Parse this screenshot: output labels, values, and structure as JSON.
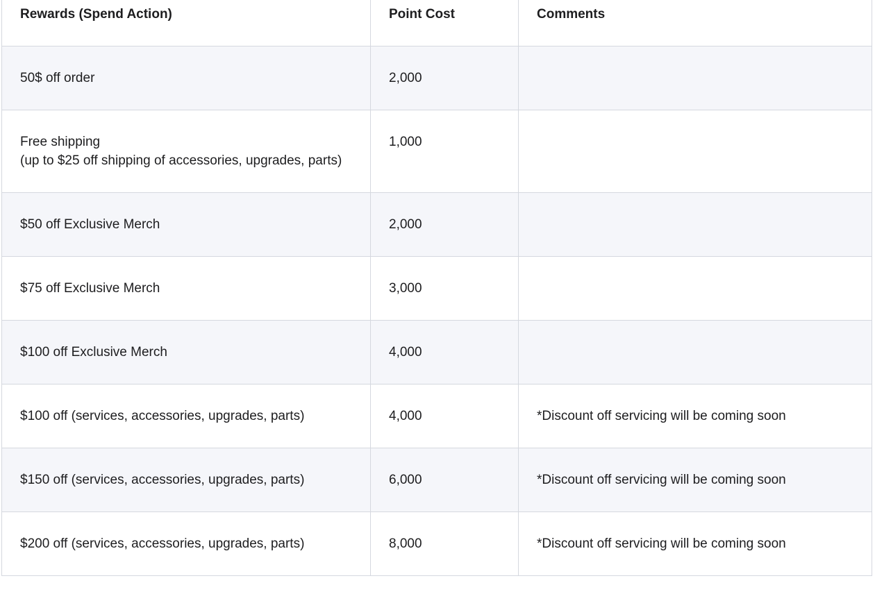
{
  "table": {
    "headers": [
      "Rewards (Spend Action)",
      "Point Cost",
      "Comments"
    ],
    "rows": [
      {
        "reward": "50$ off order",
        "cost": "2,000",
        "comment": ""
      },
      {
        "reward": "Free shipping\n(up to $25 off shipping of accessories, upgrades, parts)",
        "cost": "1,000",
        "comment": ""
      },
      {
        "reward": "$50 off Exclusive Merch",
        "cost": "2,000",
        "comment": ""
      },
      {
        "reward": "$75 off Exclusive Merch",
        "cost": "3,000",
        "comment": ""
      },
      {
        "reward": "$100 off Exclusive Merch",
        "cost": "4,000",
        "comment": ""
      },
      {
        "reward": "$100 off (services, accessories, upgrades, parts)",
        "cost": "4,000",
        "comment": "*Discount off servicing will be coming soon"
      },
      {
        "reward": "$150 off (services, accessories, upgrades, parts)",
        "cost": "6,000",
        "comment": "*Discount off servicing will be coming soon"
      },
      {
        "reward": "$200 off (services, accessories, upgrades, parts)",
        "cost": "8,000",
        "comment": "*Discount off servicing will be coming soon"
      }
    ]
  }
}
